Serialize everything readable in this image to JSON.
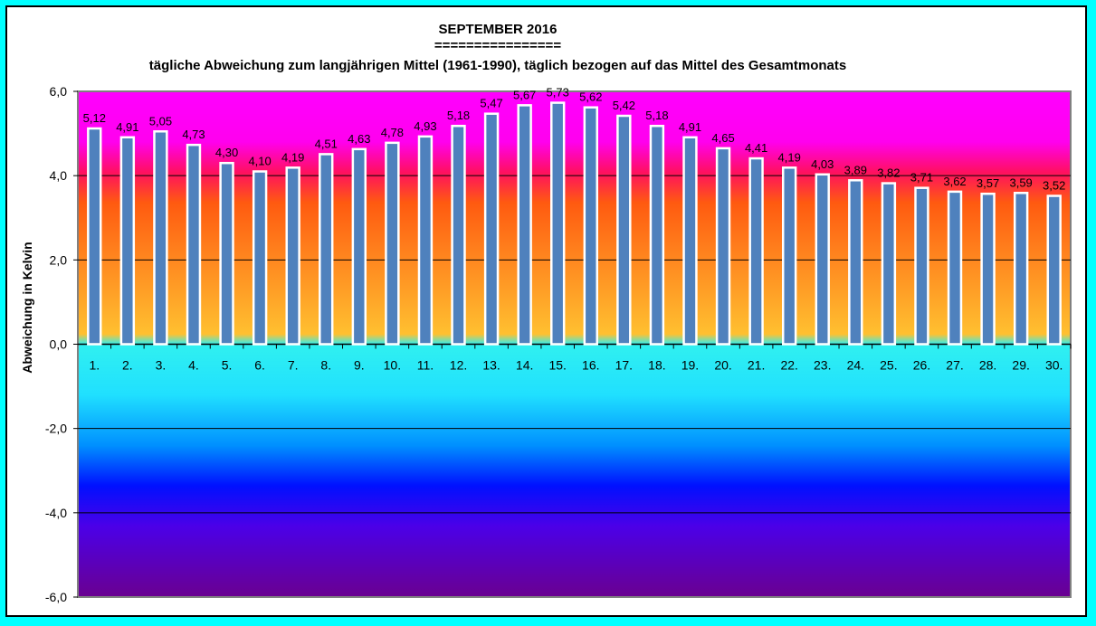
{
  "chart_data": {
    "type": "bar",
    "title": "SEPTEMBER 2016",
    "title_underline": "================",
    "subtitle": "tägliche Abweichung zum langjährigen Mittel (1961-1990), täglich bezogen auf das Mittel des Gesamtmonats",
    "ylabel": "Abweichung in Kelvin",
    "xlabel": "",
    "ylim": [
      -6,
      6
    ],
    "yticks": [
      "6,0",
      "4,0",
      "2,0",
      "0,0",
      "-2,0",
      "-4,0",
      "-6,0"
    ],
    "ytick_values": [
      6,
      4,
      2,
      0,
      -2,
      -4,
      -6
    ],
    "grid": true,
    "legend": "none",
    "categories": [
      "1.",
      "2.",
      "3.",
      "4.",
      "5.",
      "6.",
      "7.",
      "8.",
      "9.",
      "10.",
      "11.",
      "12.",
      "13.",
      "14.",
      "15.",
      "16.",
      "17.",
      "18.",
      "19.",
      "20.",
      "21.",
      "22.",
      "23.",
      "24.",
      "25.",
      "26.",
      "27.",
      "28.",
      "29.",
      "30."
    ],
    "values": [
      5.12,
      4.91,
      5.05,
      4.73,
      4.3,
      4.1,
      4.19,
      4.51,
      4.63,
      4.78,
      4.93,
      5.18,
      5.47,
      5.67,
      5.73,
      5.62,
      5.42,
      5.18,
      4.91,
      4.65,
      4.41,
      4.19,
      4.03,
      3.89,
      3.82,
      3.71,
      3.62,
      3.57,
      3.59,
      3.52
    ],
    "data_labels": [
      "5,12",
      "4,91",
      "5,05",
      "4,73",
      "4,30",
      "4,10",
      "4,19",
      "4,51",
      "4,63",
      "4,78",
      "4,93",
      "5,18",
      "5,47",
      "5,67",
      "5,73",
      "5,62",
      "5,42",
      "5,18",
      "4,91",
      "4,65",
      "4,41",
      "4,19",
      "4,03",
      "3,89",
      "3,82",
      "3,71",
      "3,62",
      "3,57",
      "3,59",
      "3,52"
    ],
    "colors": {
      "bar_fill": "#4f81bd",
      "bar_stroke": "#ffffff",
      "page_background": "#00ffff"
    }
  }
}
